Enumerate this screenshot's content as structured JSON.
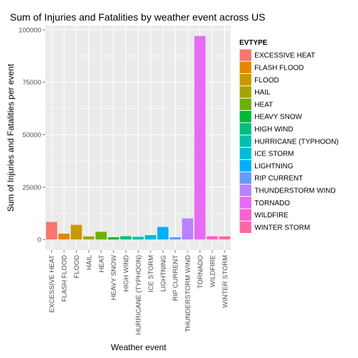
{
  "chart_data": {
    "type": "bar",
    "title": "Sum of Injuries and Fatalities by weather event across US",
    "xlabel": "Weather event",
    "ylabel": "Sum of Injuries and Fatalities per event",
    "ylim": [
      -5000,
      102000
    ],
    "yticks": [
      0,
      25000,
      50000,
      75000,
      100000
    ],
    "ytick_labels": [
      "0",
      "25000",
      "50000",
      "75000",
      "100000"
    ],
    "grid": true,
    "legend": {
      "title": "EVTYPE",
      "placement": "right"
    },
    "categories": [
      "EXCESSIVE HEAT",
      "FLASH FLOOD",
      "FLOOD",
      "HAIL",
      "HEAT",
      "HEAVY SNOW",
      "HIGH WIND",
      "HURRICANE (TYPHOON)",
      "ICE STORM",
      "LIGHTNING",
      "RIP CURRENT",
      "THUNDERSTORM WIND",
      "TORNADO",
      "WILDFIRE",
      "WINTER STORM"
    ],
    "values": [
      8400,
      2800,
      7000,
      1500,
      3700,
      1100,
      1600,
      1300,
      2100,
      6000,
      1100,
      10100,
      97000,
      1600,
      1500
    ],
    "colors": [
      "#F8766D",
      "#E58700",
      "#C99800",
      "#A3A500",
      "#6BB100",
      "#00BA38",
      "#00BF7D",
      "#00C0AF",
      "#00BCD8",
      "#00B0F6",
      "#619CFF",
      "#B983FF",
      "#E76BF3",
      "#FD61D1",
      "#FF67A4"
    ],
    "panel_background": "#EBEBEB",
    "grid_color": "#FFFFFF"
  }
}
